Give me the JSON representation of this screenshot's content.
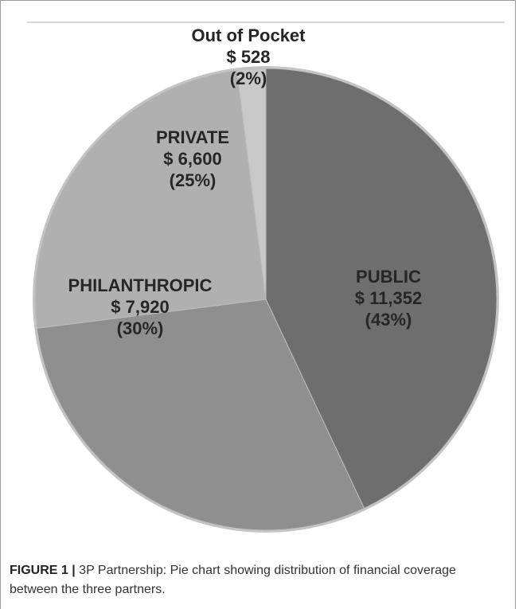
{
  "chart_data": {
    "type": "pie",
    "slices": [
      {
        "name": "PUBLIC",
        "amount": "$ 11,352",
        "percent": "(43%)",
        "value": 11352,
        "color": "#6e6e6e",
        "label_lines": [
          "PUBLIC",
          "$ 11,352",
          "(43%)"
        ]
      },
      {
        "name": "PHILANTHROPIC",
        "amount": "$ 7,920",
        "percent": "(30%)",
        "value": 7920,
        "color": "#8f8f8f",
        "label_lines": [
          "PHILANTHROPIC",
          "$ 7,920",
          "(30%)"
        ]
      },
      {
        "name": "PRIVATE",
        "amount": "$ 6,600",
        "percent": "(25%)",
        "value": 6600,
        "color": "#b0b0b0",
        "label_lines": [
          "PRIVATE",
          "$ 6,600",
          "(25%)"
        ]
      },
      {
        "name": "Out of Pocket",
        "amount": "$ 528",
        "percent": "(2%)",
        "value": 528,
        "color": "#c8c8c8",
        "label_lines": [
          "Out of Pocket",
          "$ 528",
          "(2%)"
        ]
      }
    ],
    "outline_color": "#c4c4c4"
  },
  "caption": {
    "label": "FIGURE 1 |",
    "text": " 3P Partnership: Pie chart showing distribution of financial coverage between the three partners."
  }
}
